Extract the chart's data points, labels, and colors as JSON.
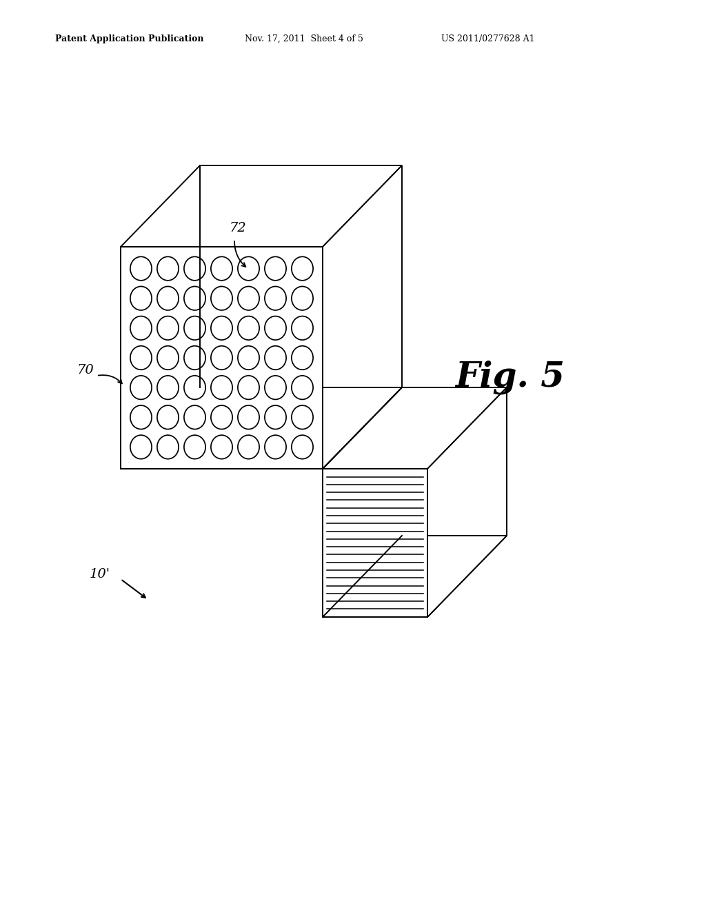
{
  "bg_color": "#ffffff",
  "line_color": "#000000",
  "header_text": "Patent Application Publication",
  "header_date": "Nov. 17, 2011  Sheet 4 of 5",
  "header_patent": "US 2011/0277628 A1",
  "fig_label": "Fig. 5",
  "label_10": "10'",
  "label_70": "70",
  "label_72": "72",
  "circles_rows": 7,
  "circles_cols": 7,
  "stripe_count": 18,
  "lw": 1.4
}
